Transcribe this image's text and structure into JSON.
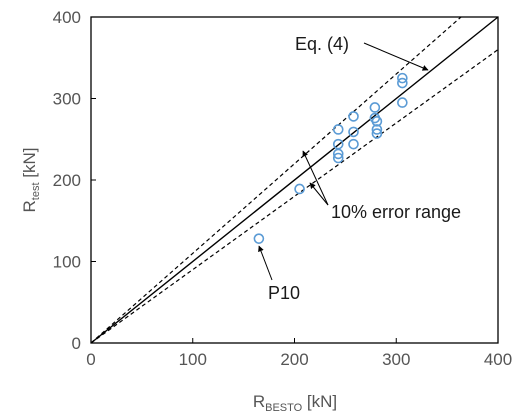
{
  "chart_data": {
    "type": "scatter",
    "xlabel": {
      "main": "R",
      "sub": "BESTO",
      "unit": " [kN]"
    },
    "ylabel": {
      "main": "R",
      "sub": "test",
      "unit": " [kN]"
    },
    "xlim": [
      0,
      400
    ],
    "ylim": [
      0,
      400
    ],
    "xticks": [
      "0",
      "100",
      "200",
      "300",
      "400"
    ],
    "yticks": [
      "0",
      "100",
      "200",
      "300",
      "400"
    ],
    "grid": false,
    "points": [
      {
        "x": 165,
        "y": 128
      },
      {
        "x": 205,
        "y": 189
      },
      {
        "x": 243,
        "y": 262
      },
      {
        "x": 243,
        "y": 244
      },
      {
        "x": 243,
        "y": 232
      },
      {
        "x": 243,
        "y": 227
      },
      {
        "x": 258,
        "y": 278
      },
      {
        "x": 258,
        "y": 259
      },
      {
        "x": 258,
        "y": 244
      },
      {
        "x": 279,
        "y": 289
      },
      {
        "x": 279,
        "y": 276
      },
      {
        "x": 281,
        "y": 272
      },
      {
        "x": 281,
        "y": 262
      },
      {
        "x": 281,
        "y": 257
      },
      {
        "x": 306,
        "y": 325
      },
      {
        "x": 306,
        "y": 319
      },
      {
        "x": 306,
        "y": 295
      }
    ],
    "lines": [
      {
        "name": "Eq. (4)",
        "slope": 1.0,
        "style": "solid"
      },
      {
        "name": "+10%",
        "slope": 1.1,
        "style": "dashed"
      },
      {
        "name": "-10%",
        "slope": 0.9,
        "style": "dashed"
      }
    ],
    "annotations": [
      {
        "text": "Eq. (4)"
      },
      {
        "text": "10% error range"
      },
      {
        "text": "P10"
      }
    ],
    "colors": {
      "marker": "#5b9bd5",
      "line": "#000000",
      "text": "#555555"
    }
  }
}
